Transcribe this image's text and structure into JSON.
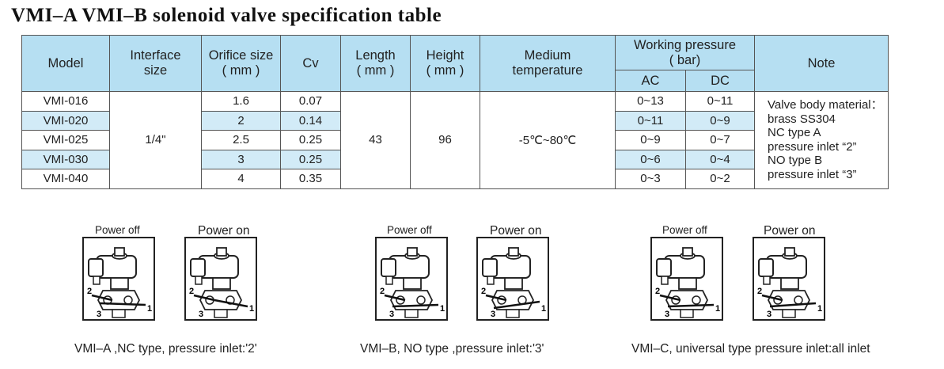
{
  "title": "VMI–A  VMI–B solenoid valve specification table",
  "table": {
    "headers": {
      "model": "Model",
      "interface_size": [
        "Interface",
        "size"
      ],
      "orifice_size": [
        "Orifice size",
        "( mm )"
      ],
      "cv": "Cv",
      "length": [
        "Length",
        "( mm )"
      ],
      "height": [
        "Height",
        "( mm )"
      ],
      "medium_temperature": [
        "Medium",
        "temperature"
      ],
      "working_pressure": [
        "Working pressure",
        "( bar)"
      ],
      "ac": "AC",
      "dc": "DC",
      "note": "Note"
    },
    "rows": [
      {
        "model": "VMI-016",
        "orifice": "1.6",
        "cv": "0.07",
        "ac": "0~13",
        "dc": "0~11"
      },
      {
        "model": "VMI-020",
        "orifice": "2",
        "cv": "0.14",
        "ac": "0~11",
        "dc": "0~9"
      },
      {
        "model": "VMI-025",
        "orifice": "2.5",
        "cv": "0.25",
        "ac": "0~9",
        "dc": "0~7"
      },
      {
        "model": "VMI-030",
        "orifice": "3",
        "cv": "0.25",
        "ac": "0~6",
        "dc": "0~4"
      },
      {
        "model": "VMI-040",
        "orifice": "4",
        "cv": "0.35",
        "ac": "0~3",
        "dc": "0~2"
      }
    ],
    "interface_size": "1/4\"",
    "length": "43",
    "height": "96",
    "medium_temperature": "-5℃~80℃",
    "note_lines": [
      "Valve body material：",
      "brass  SS304",
      "NC type A",
      "pressure inlet “2”",
      "NO type B",
      "pressure inlet “3”"
    ],
    "shade_color": "#d2ebf7",
    "header_color": "#b6dff2"
  },
  "diagrams": [
    {
      "power_off": "Power off",
      "power_on": "Power on",
      "caption": "VMI–A ,NC type, pressure inlet:'2'"
    },
    {
      "power_off": "Power off",
      "power_on": "Power on",
      "caption": "VMI–B, NO type ,pressure inlet:'3'"
    },
    {
      "power_off": "Power off",
      "power_on": "Power on",
      "caption": "VMI–C, universal type pressure inlet:all inlet"
    }
  ],
  "port_labels": [
    "1",
    "2",
    "3"
  ]
}
